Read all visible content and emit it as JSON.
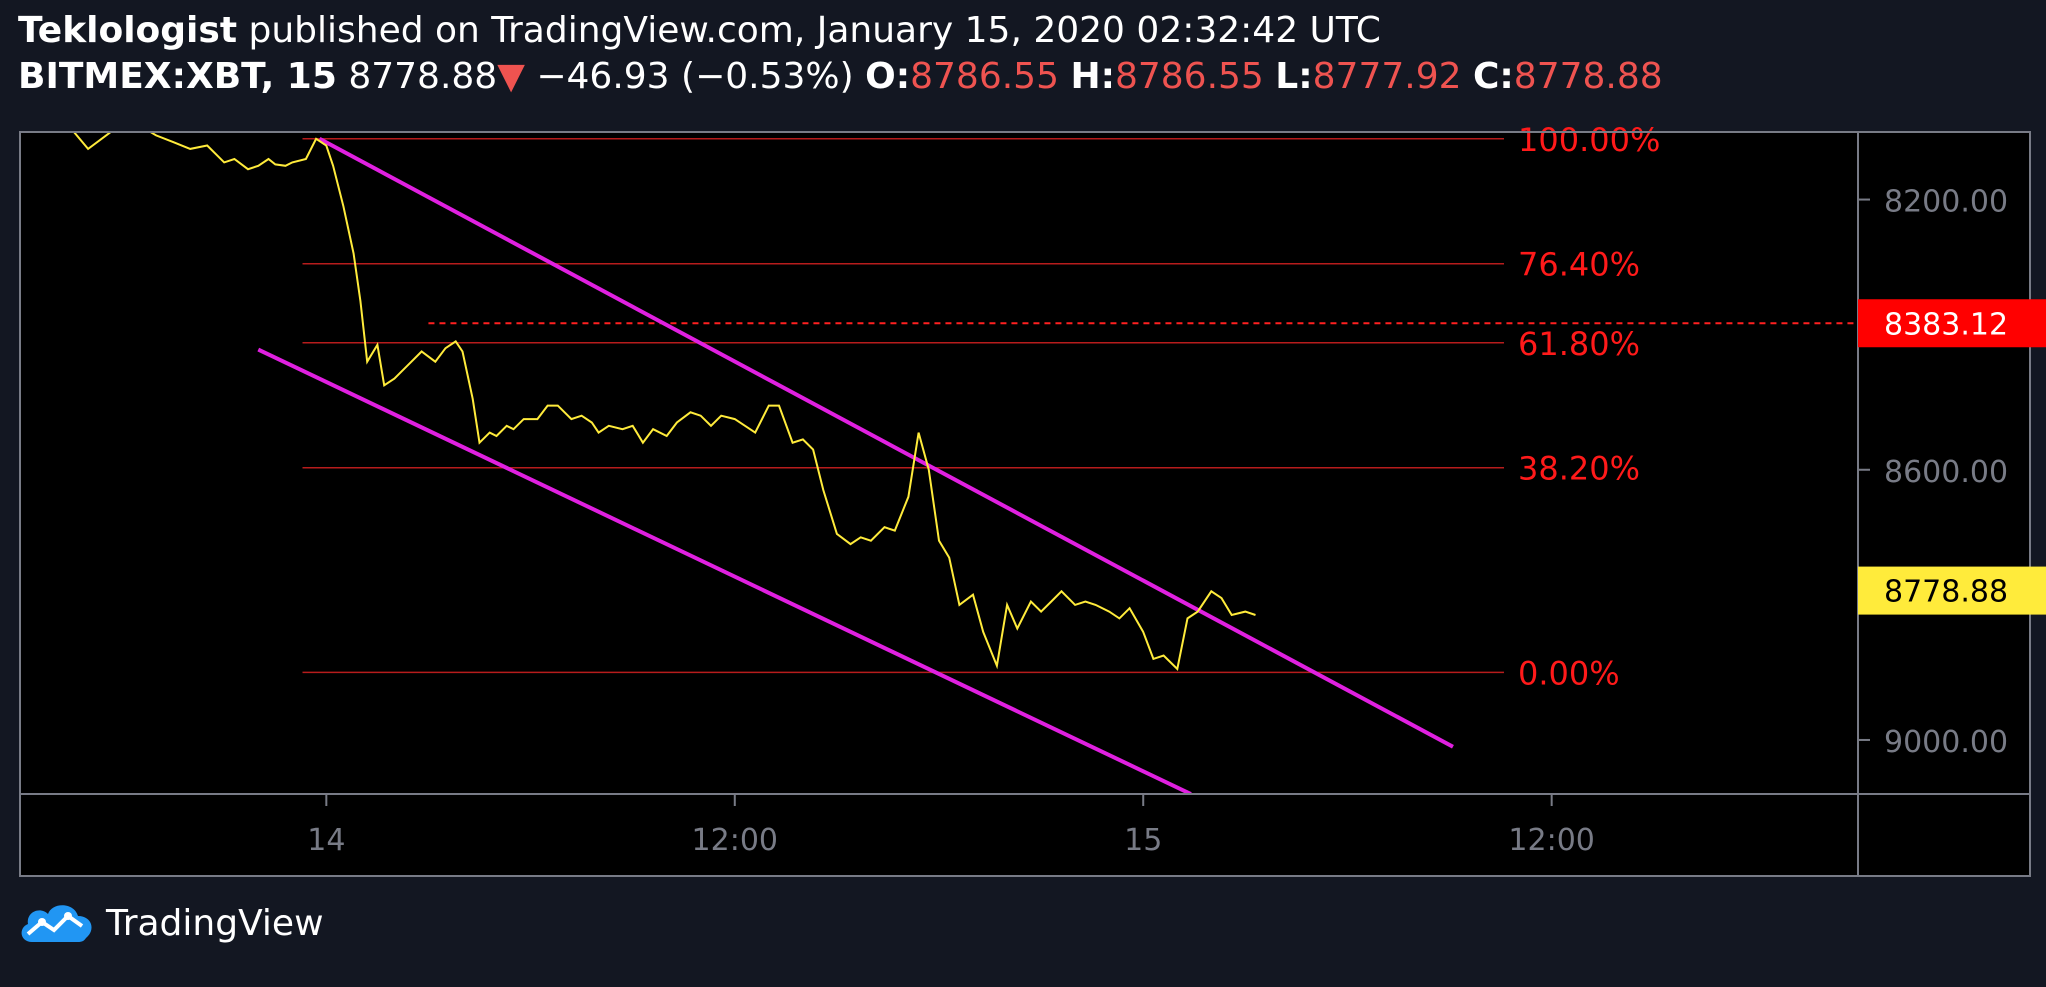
{
  "header": {
    "author": "Teklologist",
    "published_text": "published on TradingView.com, January 15, 2020 02:32:42 UTC",
    "symbol": "BITMEX:XBT, 15",
    "last_price": "8778.88",
    "change_arrow": "▼",
    "change": "−46.93 (−0.53%)",
    "o_label": "O:",
    "o_value": "8786.55",
    "h_label": "H:",
    "h_value": "8786.55",
    "l_label": "L:",
    "l_value": "8777.92",
    "c_label": "C:",
    "c_value": "8778.88"
  },
  "footer": {
    "brand": "TradingView",
    "logo_icon": "tradingview-cloud-icon"
  },
  "colors": {
    "background": "#000000",
    "frame": "#787b86",
    "price_line": "#ffeb3b",
    "channel": "#e020e0",
    "fib": "#ff1a1a",
    "fib_line": "#b71c1c",
    "axis_text": "#787b86",
    "header_red": "#ef5350"
  },
  "chart_data": {
    "type": "line",
    "symbol": "BITMEX:XBT",
    "interval": "15",
    "y_axis": {
      "inverted": true,
      "ylim": [
        8100,
        9080
      ],
      "ticks": [
        8200,
        8600,
        9000
      ],
      "tick_labels": [
        "8200.00",
        "8600.00",
        "9000.00"
      ]
    },
    "x_axis": {
      "tick_labels": [
        "14",
        "12:00",
        "15",
        "12:00"
      ],
      "tick_positions_hours": [
        0,
        12,
        24,
        36
      ],
      "xlim_hours": [
        -9,
        45
      ]
    },
    "price_labels": [
      {
        "value": 8383.12,
        "text": "8383.12",
        "style": "red",
        "dashed_line_from_hours": 3
      },
      {
        "value": 8778.88,
        "text": "8778.88",
        "style": "yellow"
      }
    ],
    "fibonacci": {
      "start_hours": -0.7,
      "end_hours": 34.6,
      "levels": [
        {
          "label": "100.00%",
          "value": 8110
        },
        {
          "label": "76.40%",
          "value": 8295
        },
        {
          "label": "61.80%",
          "value": 8412
        },
        {
          "label": "38.20%",
          "value": 8597
        },
        {
          "label": "0.00%",
          "value": 8900
        }
      ]
    },
    "channel_lines": [
      {
        "from": {
          "x": -0.2,
          "y": 8110
        },
        "to": {
          "x": 33.1,
          "y": 9010
        }
      },
      {
        "from": {
          "x": -2.0,
          "y": 8422
        },
        "to": {
          "x": 25.4,
          "y": 9080
        }
      }
    ],
    "series": [
      {
        "x": [
          -7.5,
          -7,
          -6.2,
          -5.5,
          -5,
          -4.5,
          -4,
          -3.5,
          -3,
          -2.7,
          -2.3,
          -2,
          -1.7,
          -1.5,
          -1.2,
          -1,
          -0.6,
          -0.3,
          0,
          0.2,
          0.5,
          0.8,
          1,
          1.2,
          1.5,
          1.7,
          2,
          2.2,
          2.5,
          2.8,
          3.2,
          3.5,
          3.8,
          4,
          4.3,
          4.5,
          4.8,
          5,
          5.3,
          5.5,
          5.8,
          6.2,
          6.5,
          6.8,
          7.2,
          7.5,
          7.8,
          8,
          8.3,
          8.7,
          9,
          9.3,
          9.6,
          10,
          10.3,
          10.7,
          11,
          11.3,
          11.6,
          12,
          12.3,
          12.6,
          13,
          13.3,
          13.7,
          14,
          14.3,
          14.6,
          15,
          15.4,
          15.7,
          16,
          16.4,
          16.7,
          17.1,
          17.4,
          17.7,
          18,
          18.3,
          18.6,
          19,
          19.3,
          19.7,
          20,
          20.3,
          20.7,
          21,
          21.3,
          21.6,
          22,
          22.3,
          22.6,
          23,
          23.3,
          23.6,
          24,
          24.3,
          24.6,
          25,
          25.3,
          25.6,
          26,
          26.3,
          26.6,
          27,
          27.3
        ],
        "y": [
          8095,
          8125,
          8095,
          8090,
          8105,
          8115,
          8125,
          8120,
          8145,
          8140,
          8155,
          8150,
          8140,
          8148,
          8150,
          8145,
          8140,
          8110,
          8120,
          8150,
          8210,
          8280,
          8350,
          8440,
          8415,
          8475,
          8465,
          8455,
          8440,
          8425,
          8440,
          8420,
          8410,
          8425,
          8495,
          8560,
          8545,
          8550,
          8535,
          8540,
          8525,
          8525,
          8505,
          8505,
          8525,
          8520,
          8530,
          8545,
          8535,
          8540,
          8535,
          8560,
          8540,
          8550,
          8530,
          8515,
          8520,
          8535,
          8520,
          8525,
          8535,
          8545,
          8505,
          8505,
          8560,
          8555,
          8570,
          8630,
          8695,
          8710,
          8700,
          8705,
          8685,
          8690,
          8640,
          8545,
          8600,
          8705,
          8730,
          8800,
          8785,
          8840,
          8890,
          8800,
          8835,
          8795,
          8810,
          8795,
          8780,
          8800,
          8795,
          8800,
          8810,
          8820,
          8805,
          8840,
          8880,
          8875,
          8895,
          8820,
          8810,
          8780,
          8790,
          8815,
          8810,
          8815
        ]
      }
    ]
  }
}
